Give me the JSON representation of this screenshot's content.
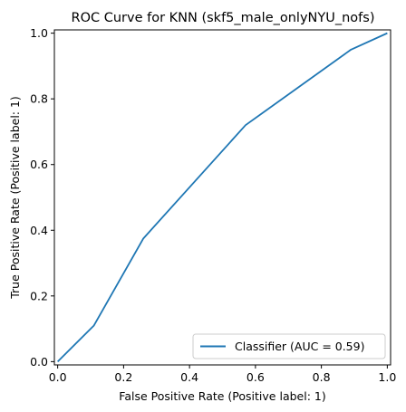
{
  "chart_data": {
    "type": "line",
    "title": "ROC Curve for KNN (skf5_male_onlyNYU_nofs)",
    "xlabel": "False Positive Rate (Positive label: 1)",
    "ylabel": "True Positive Rate (Positive label: 1)",
    "xlim": [
      -0.01,
      1.01
    ],
    "ylim": [
      -0.01,
      1.01
    ],
    "x_ticks": [
      0.0,
      0.2,
      0.4,
      0.6,
      0.8,
      1.0
    ],
    "y_ticks": [
      0.0,
      0.2,
      0.4,
      0.6,
      0.8,
      1.0
    ],
    "x_tick_labels": [
      "0.0",
      "0.2",
      "0.4",
      "0.6",
      "0.8",
      "1.0"
    ],
    "y_tick_labels": [
      "0.0",
      "0.2",
      "0.4",
      "0.6",
      "0.8",
      "1.0"
    ],
    "grid": false,
    "legend_position": "lower-right",
    "series": [
      {
        "name": "Classifier (AUC = 0.59)",
        "color": "#1f77b4",
        "x": [
          0.0,
          0.11,
          0.26,
          0.57,
          0.89,
          1.0
        ],
        "y": [
          0.0,
          0.11,
          0.375,
          0.72,
          0.95,
          1.0
        ]
      }
    ]
  }
}
